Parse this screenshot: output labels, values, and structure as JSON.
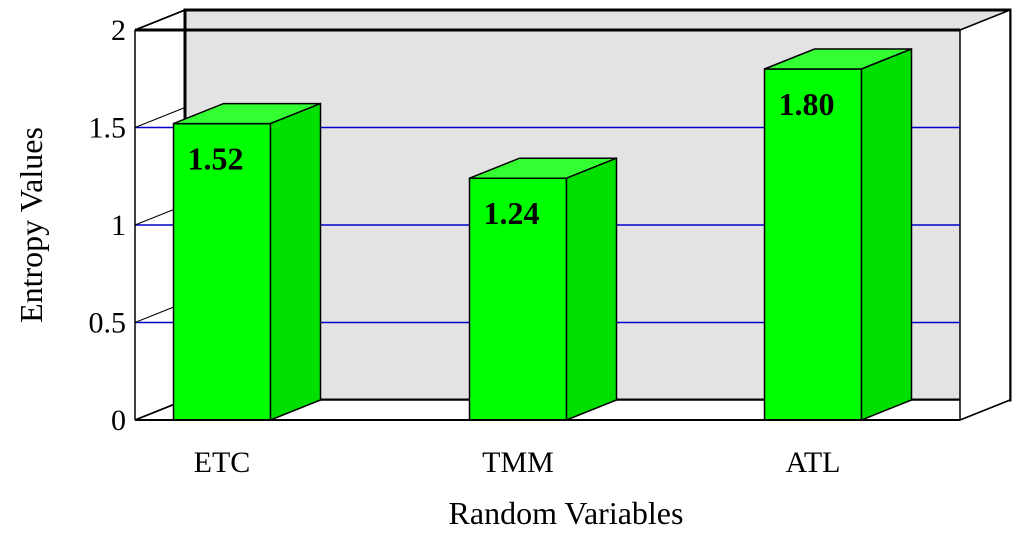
{
  "chart_data": {
    "type": "bar",
    "categories": [
      "ETC",
      "TMM",
      "ATL"
    ],
    "values": [
      1.52,
      1.24,
      1.8
    ],
    "data_labels": [
      "1.52",
      "1.24",
      "1.80"
    ],
    "title": "",
    "xlabel": "Random Variables",
    "ylabel": "Entropy Values",
    "ylim": [
      0,
      2
    ],
    "yticks": [
      0,
      0.5,
      1,
      1.5,
      2
    ],
    "ytick_labels": [
      "0",
      "0.5",
      "1",
      "1.5",
      "2"
    ],
    "grid": true,
    "style": "3d",
    "colors": {
      "bar_front": "#00ff00",
      "bar_top": "#33ff33",
      "bar_side": "#00e000",
      "back_wall": "#e3e3e3",
      "gridline": "#0000cc",
      "edge": "#000000"
    }
  }
}
